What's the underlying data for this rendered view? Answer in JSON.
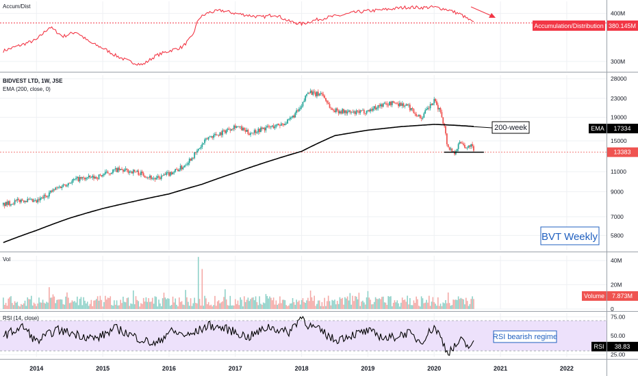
{
  "chart_data": [
    {
      "type": "line",
      "pane": "accumulation-distribution",
      "title": "Accum/Dist",
      "y_ticks": [
        "400M",
        "300M"
      ],
      "tick_values": [
        400,
        300
      ],
      "ylim": [
        280,
        425
      ],
      "last_value_tag": "380.145M",
      "series_tag": "Accumulation/Distribution",
      "color": "#f23645",
      "x": [
        2013.5,
        2014.0,
        2014.2,
        2014.4,
        2014.6,
        2014.8,
        2015.0,
        2015.2,
        2015.4,
        2015.6,
        2015.8,
        2016.0,
        2016.2,
        2016.35,
        2016.45,
        2016.6,
        2016.8,
        2017.0,
        2017.2,
        2017.4,
        2017.6,
        2017.8,
        2018.0,
        2018.2,
        2018.4,
        2018.6,
        2018.8,
        2019.0,
        2019.2,
        2019.4,
        2019.6,
        2019.8,
        2020.0,
        2020.2,
        2020.4,
        2020.6
      ],
      "values": [
        322,
        345,
        372,
        352,
        362,
        340,
        328,
        312,
        300,
        293,
        312,
        322,
        330,
        352,
        390,
        402,
        406,
        400,
        396,
        392,
        398,
        384,
        378,
        386,
        392,
        396,
        402,
        405,
        407,
        410,
        413,
        412,
        413,
        408,
        398,
        380
      ]
    },
    {
      "type": "line",
      "pane": "price",
      "title": "BIDVEST LTD, 1W, JSE",
      "subtitle": "EMA (200, close, 0)",
      "y_ticks": [
        "28000",
        "23000",
        "19000",
        "15000",
        "13383",
        "11000",
        "9000",
        "7000",
        "5800"
      ],
      "tick_values": [
        28000,
        23000,
        19000,
        15000,
        13383,
        11000,
        9000,
        7000,
        5800
      ],
      "log_scale": true,
      "ylim": [
        5000,
        29000
      ],
      "ema_tag": "EMA",
      "ema_value": "17334",
      "close_tag": "13383",
      "annotation_ema": "200-week",
      "watermark": "BVT Weekly",
      "x": [
        2013.5,
        2013.8,
        2014.0,
        2014.3,
        2014.6,
        2014.9,
        2015.2,
        2015.5,
        2015.8,
        2016.0,
        2016.2,
        2016.4,
        2016.6,
        2016.8,
        2017.0,
        2017.2,
        2017.4,
        2017.6,
        2017.8,
        2018.0,
        2018.1,
        2018.2,
        2018.3,
        2018.45,
        2018.6,
        2018.8,
        2019.0,
        2019.2,
        2019.4,
        2019.6,
        2019.8,
        2019.9,
        2020.0,
        2020.1,
        2020.15,
        2020.2,
        2020.3,
        2020.4,
        2020.5,
        2020.55,
        2020.6
      ],
      "close": [
        7900,
        8300,
        8100,
        9300,
        10200,
        10400,
        11200,
        11000,
        10200,
        10800,
        11500,
        13200,
        15600,
        16300,
        17500,
        16200,
        16900,
        17400,
        18200,
        21000,
        25000,
        23800,
        24300,
        20500,
        20200,
        19800,
        20300,
        21500,
        22000,
        21300,
        18800,
        20600,
        22300,
        20000,
        17500,
        14200,
        13300,
        14900,
        13900,
        14500,
        13383
      ],
      "ema_x": [
        2013.5,
        2014.0,
        2014.5,
        2015.0,
        2015.5,
        2016.0,
        2016.5,
        2017.0,
        2017.5,
        2018.0,
        2018.5,
        2019.0,
        2019.5,
        2020.0,
        2020.3,
        2020.6
      ],
      "ema": [
        5400,
        6100,
        6900,
        7600,
        8200,
        8800,
        9700,
        10900,
        12200,
        13500,
        15800,
        16700,
        17300,
        17700,
        17550,
        17334
      ],
      "support_level": 13383
    },
    {
      "type": "bar",
      "pane": "volume",
      "title": "Vol",
      "y_ticks": [
        "40M",
        "20M",
        "0"
      ],
      "tick_values": [
        40,
        20,
        0
      ],
      "ylim": [
        0,
        44
      ],
      "last_value_label": "Volume",
      "last_value": "7.873M",
      "spikes": [
        {
          "x": 2016.45,
          "value": 43
        },
        {
          "x": 2016.5,
          "value": 33
        },
        {
          "x": 2014.2,
          "value": 18
        }
      ]
    },
    {
      "type": "line",
      "pane": "rsi",
      "title": "RSI (14, close)",
      "y_ticks": [
        "75.00",
        "50.00",
        "25.00"
      ],
      "tick_values": [
        75,
        50,
        25
      ],
      "ylim": [
        22,
        80
      ],
      "band": [
        30,
        70
      ],
      "last_value_label": "RSI",
      "last_value": "38.83",
      "annotation": "RSI bearish regime",
      "x": [
        2013.5,
        2013.8,
        2014.0,
        2014.3,
        2014.6,
        2014.9,
        2015.2,
        2015.5,
        2015.8,
        2016.0,
        2016.3,
        2016.6,
        2016.9,
        2017.2,
        2017.5,
        2017.8,
        2018.0,
        2018.1,
        2018.3,
        2018.5,
        2018.7,
        2019.0,
        2019.3,
        2019.6,
        2019.8,
        2020.0,
        2020.1,
        2020.2,
        2020.3,
        2020.4,
        2020.5,
        2020.6
      ],
      "values": [
        50,
        62,
        42,
        58,
        52,
        46,
        60,
        48,
        38,
        56,
        50,
        64,
        58,
        48,
        62,
        54,
        76,
        64,
        56,
        44,
        50,
        56,
        46,
        54,
        42,
        62,
        48,
        28,
        34,
        44,
        36,
        38.83
      ]
    }
  ],
  "time_axis": {
    "labels": [
      "2014",
      "2015",
      "2016",
      "2017",
      "2018",
      "2019",
      "2020",
      "2021",
      "2022"
    ],
    "values": [
      2014,
      2015,
      2016,
      2017,
      2018,
      2019,
      2020,
      2021,
      2022
    ],
    "range": [
      2013.45,
      2022.6
    ]
  },
  "colors": {
    "up": "#26a69a",
    "down": "#ef5350",
    "ad_line": "#f23645",
    "ema": "#000000",
    "rsi_line": "#000000",
    "rsi_band": "#ede1fb",
    "blue_note": "#1f5fbf",
    "grid": "#eef0f3"
  }
}
